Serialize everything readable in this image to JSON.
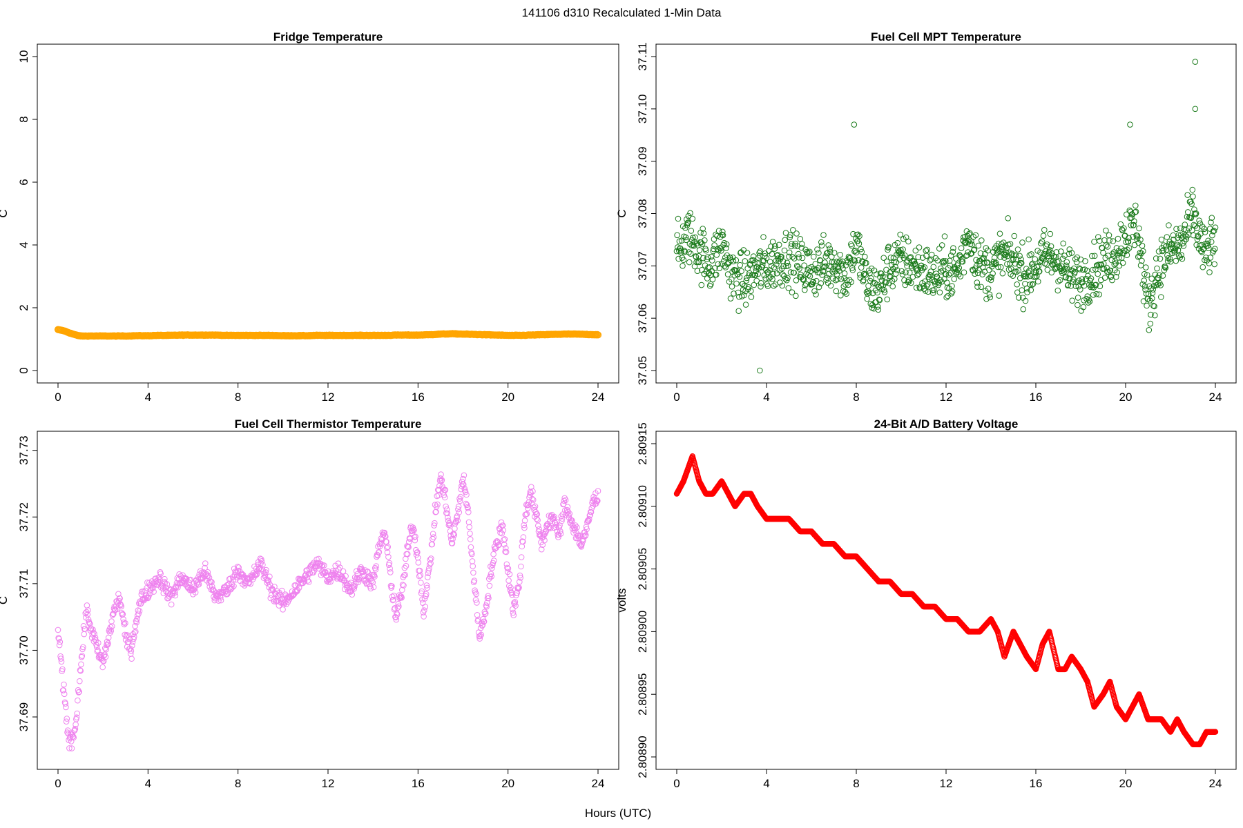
{
  "figure": {
    "title": "141106   d310   Recalculated 1-Min Data",
    "xlabel": "Hours (UTC)"
  },
  "chart_data": [
    {
      "type": "scatter",
      "title": "Fridge Temperature",
      "xlabel": "Hours (UTC)",
      "ylabel": "C",
      "color": "#FFA500",
      "xlim": [
        0,
        24
      ],
      "ylim": [
        0,
        10
      ],
      "xticks": [
        0,
        4,
        8,
        12,
        16,
        20,
        24
      ],
      "xtick_labels": [
        "0",
        "4",
        "8",
        "12",
        "16",
        "20",
        "24"
      ],
      "yticks": [
        0,
        2,
        4,
        6,
        8,
        10
      ],
      "ytick_labels": [
        "0",
        "2",
        "4",
        "6",
        "8",
        "10"
      ],
      "x": [
        0,
        0.25,
        0.5,
        0.75,
        1,
        1.5,
        2,
        2.5,
        3,
        3.5,
        4,
        4.5,
        5,
        5.5,
        6,
        6.5,
        7,
        7.5,
        8,
        8.5,
        9,
        9.5,
        10,
        10.5,
        11,
        11.5,
        12,
        12.5,
        13,
        13.5,
        14,
        14.5,
        15,
        15.5,
        16,
        16.5,
        17,
        17.5,
        18,
        18.5,
        19,
        19.5,
        20,
        20.5,
        21,
        21.5,
        22,
        22.5,
        23,
        23.5,
        24
      ],
      "y": [
        1.3,
        1.27,
        1.2,
        1.14,
        1.1,
        1.1,
        1.1,
        1.1,
        1.1,
        1.11,
        1.11,
        1.12,
        1.12,
        1.13,
        1.13,
        1.13,
        1.13,
        1.12,
        1.12,
        1.12,
        1.12,
        1.12,
        1.11,
        1.11,
        1.11,
        1.12,
        1.12,
        1.12,
        1.12,
        1.12,
        1.12,
        1.12,
        1.13,
        1.13,
        1.13,
        1.14,
        1.16,
        1.17,
        1.16,
        1.15,
        1.14,
        1.13,
        1.12,
        1.12,
        1.13,
        1.14,
        1.15,
        1.16,
        1.16,
        1.15,
        1.14
      ]
    },
    {
      "type": "scatter",
      "title": "Fuel Cell MPT Temperature",
      "xlabel": "Hours (UTC)",
      "ylabel": "C",
      "color": "#1a7a1a",
      "xlim": [
        0,
        24
      ],
      "ylim": [
        37.05,
        37.11
      ],
      "xticks": [
        0,
        4,
        8,
        12,
        16,
        20,
        24
      ],
      "xtick_labels": [
        "0",
        "4",
        "8",
        "12",
        "16",
        "20",
        "24"
      ],
      "yticks": [
        37.05,
        37.06,
        37.07,
        37.08,
        37.09,
        37.1,
        37.11
      ],
      "ytick_labels": [
        "37.05",
        "37.06",
        "37.07",
        "37.08",
        "37.09",
        "37.10",
        "37.11"
      ],
      "x": [
        0,
        0.5,
        1,
        1.5,
        2,
        2.5,
        3,
        3.5,
        4,
        4.5,
        5,
        5.5,
        6,
        6.5,
        7,
        7.5,
        8,
        8.5,
        9,
        9.5,
        10,
        10.5,
        11,
        11.5,
        12,
        12.5,
        13,
        13.5,
        14,
        14.5,
        15,
        15.5,
        16,
        16.5,
        17,
        17.5,
        18,
        18.5,
        19,
        19.5,
        20,
        20.5,
        21,
        21.5,
        22,
        22.5,
        23,
        23.5,
        24
      ],
      "y": [
        37.072,
        37.076,
        37.073,
        37.07,
        37.074,
        37.068,
        37.067,
        37.069,
        37.07,
        37.071,
        37.072,
        37.07,
        37.069,
        37.07,
        37.071,
        37.068,
        37.074,
        37.066,
        37.065,
        37.07,
        37.071,
        37.07,
        37.069,
        37.068,
        37.069,
        37.069,
        37.076,
        37.07,
        37.069,
        37.072,
        37.071,
        37.068,
        37.07,
        37.072,
        37.071,
        37.068,
        37.067,
        37.069,
        37.071,
        37.072,
        37.076,
        37.078,
        37.062,
        37.07,
        37.073,
        37.074,
        37.08,
        37.072,
        37.075
      ],
      "extremes": [
        {
          "x": 3.7,
          "y": 37.05
        },
        {
          "x": 7.9,
          "y": 37.097
        },
        {
          "x": 20.2,
          "y": 37.097
        },
        {
          "x": 23.1,
          "y": 37.109
        },
        {
          "x": 23.1,
          "y": 37.1
        }
      ]
    },
    {
      "type": "scatter",
      "title": "Fuel Cell Thermistor Temperature",
      "xlabel": "Hours (UTC)",
      "ylabel": "C",
      "color": "#EE82EE",
      "xlim": [
        0,
        24
      ],
      "ylim": [
        37.684,
        37.731
      ],
      "xticks": [
        0,
        4,
        8,
        12,
        16,
        20,
        24
      ],
      "xtick_labels": [
        "0",
        "4",
        "8",
        "12",
        "16",
        "20",
        "24"
      ],
      "yticks": [
        37.69,
        37.7,
        37.71,
        37.72,
        37.73
      ],
      "ytick_labels": [
        "37.69",
        "37.70",
        "37.71",
        "37.72",
        "37.73"
      ],
      "x": [
        0,
        0.25,
        0.5,
        0.75,
        1,
        1.25,
        1.5,
        1.75,
        2,
        2.25,
        2.5,
        2.75,
        3,
        3.25,
        3.5,
        3.75,
        4,
        4.5,
        5,
        5.5,
        6,
        6.5,
        7,
        7.5,
        8,
        8.5,
        9,
        9.5,
        10,
        10.5,
        11,
        11.5,
        12,
        12.5,
        13,
        13.5,
        14,
        14.25,
        14.5,
        14.75,
        15,
        15.25,
        15.5,
        15.75,
        16,
        16.25,
        16.5,
        16.75,
        17,
        17.25,
        17.5,
        17.75,
        18,
        18.25,
        18.5,
        18.75,
        19,
        19.25,
        19.5,
        19.75,
        20,
        20.25,
        20.5,
        20.75,
        21,
        21.25,
        21.5,
        21.75,
        22,
        22.25,
        22.5,
        22.75,
        23,
        23.25,
        23.5,
        23.75,
        24
      ],
      "y": [
        37.703,
        37.694,
        37.686,
        37.688,
        37.697,
        37.706,
        37.703,
        37.7,
        37.698,
        37.702,
        37.706,
        37.708,
        37.702,
        37.7,
        37.705,
        37.708,
        37.709,
        37.711,
        37.708,
        37.711,
        37.709,
        37.712,
        37.708,
        37.709,
        37.712,
        37.71,
        37.713,
        37.709,
        37.707,
        37.709,
        37.711,
        37.713,
        37.711,
        37.712,
        37.709,
        37.712,
        37.71,
        37.715,
        37.718,
        37.712,
        37.705,
        37.708,
        37.714,
        37.719,
        37.714,
        37.706,
        37.712,
        37.72,
        37.726,
        37.722,
        37.716,
        37.72,
        37.726,
        37.72,
        37.71,
        37.702,
        37.706,
        37.712,
        37.716,
        37.719,
        37.712,
        37.706,
        37.71,
        37.72,
        37.724,
        37.72,
        37.716,
        37.719,
        37.72,
        37.717,
        37.722,
        37.72,
        37.718,
        37.716,
        37.718,
        37.722,
        37.723
      ]
    },
    {
      "type": "line",
      "title": "24-Bit A/D Battery Voltage",
      "xlabel": "Hours (UTC)",
      "ylabel": "volts",
      "color": "#FF0000",
      "xlim": [
        0,
        24
      ],
      "ylim": [
        2.8089,
        2.80915
      ],
      "xticks": [
        0,
        4,
        8,
        12,
        16,
        20,
        24
      ],
      "xtick_labels": [
        "0",
        "4",
        "8",
        "12",
        "16",
        "20",
        "24"
      ],
      "yticks": [
        2.8089,
        2.80895,
        2.809,
        2.80905,
        2.8091,
        2.80915
      ],
      "ytick_labels": [
        "2.80890",
        "2.80895",
        "2.80900",
        "2.80905",
        "2.80910",
        "2.80915"
      ],
      "x": [
        0,
        0.3,
        0.7,
        1.0,
        1.3,
        1.6,
        2.0,
        2.3,
        2.6,
        3.0,
        3.3,
        3.6,
        4.0,
        4.5,
        5.0,
        5.5,
        6.0,
        6.5,
        7.0,
        7.5,
        8.0,
        8.5,
        9.0,
        9.5,
        10.0,
        10.5,
        11.0,
        11.5,
        12.0,
        12.5,
        13.0,
        13.5,
        14.0,
        14.3,
        14.6,
        15.0,
        15.3,
        15.6,
        16.0,
        16.3,
        16.6,
        17.0,
        17.3,
        17.6,
        18.0,
        18.3,
        18.6,
        19.0,
        19.3,
        19.6,
        20.0,
        20.3,
        20.6,
        21.0,
        21.3,
        21.6,
        22.0,
        22.3,
        22.6,
        23.0,
        23.3,
        23.6,
        24.0
      ],
      "y": [
        2.80911,
        2.80912,
        2.80914,
        2.80912,
        2.80911,
        2.80911,
        2.80912,
        2.80911,
        2.8091,
        2.80911,
        2.80911,
        2.8091,
        2.80909,
        2.80909,
        2.80909,
        2.80908,
        2.80908,
        2.80907,
        2.80907,
        2.80906,
        2.80906,
        2.80905,
        2.80904,
        2.80904,
        2.80903,
        2.80903,
        2.80902,
        2.80902,
        2.80901,
        2.80901,
        2.809,
        2.809,
        2.80901,
        2.809,
        2.80898,
        2.809,
        2.80899,
        2.80898,
        2.80897,
        2.80899,
        2.809,
        2.80897,
        2.80897,
        2.80898,
        2.80897,
        2.80896,
        2.80894,
        2.80895,
        2.80896,
        2.80894,
        2.80893,
        2.80894,
        2.80895,
        2.80893,
        2.80893,
        2.80893,
        2.80892,
        2.80893,
        2.80892,
        2.80891,
        2.80891,
        2.80892,
        2.80892
      ]
    }
  ]
}
